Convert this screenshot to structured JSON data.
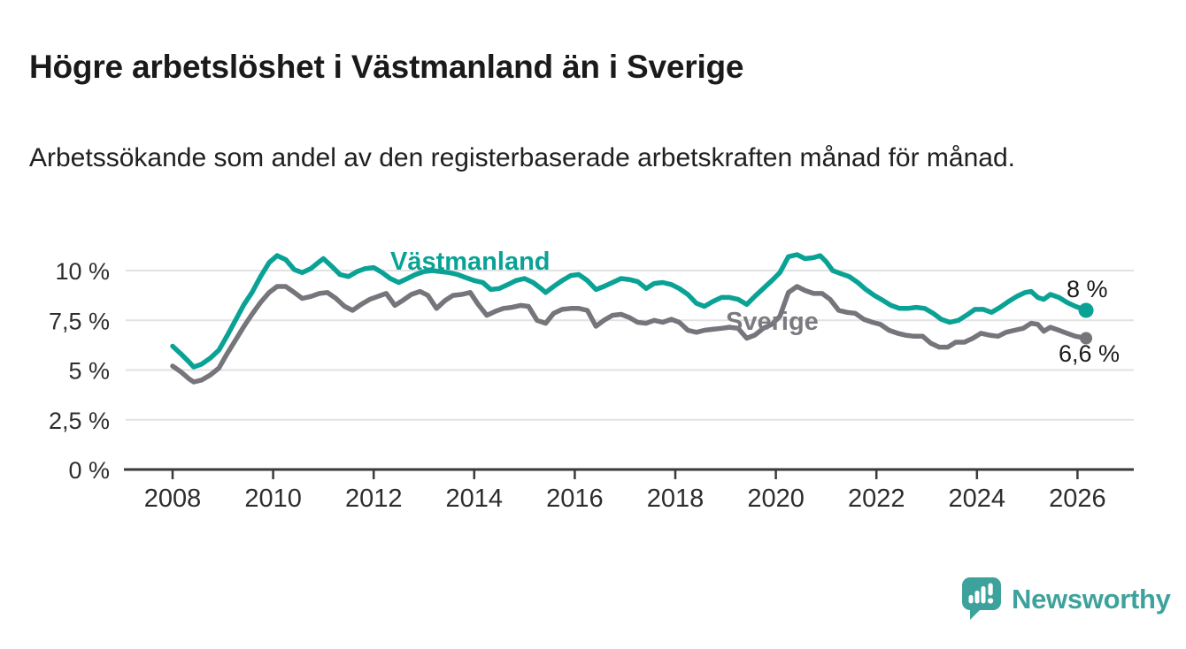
{
  "chart_data": {
    "type": "line",
    "title": "Högre arbetslöshet i Västmanland än i Sverige",
    "subtitle": "Arbetssökande som andel av den registerbaserade arbetskraften månad för månad.",
    "grid": "horizontal",
    "legend_position": "inline-labels",
    "x_axis": {
      "ticks": [
        2008,
        2010,
        2012,
        2014,
        2016,
        2018,
        2020,
        2022,
        2024,
        2026
      ],
      "range": [
        2007.0,
        2027.1
      ]
    },
    "y_axis": {
      "unit": "%",
      "tick_values": [
        0,
        2.5,
        5,
        7.5,
        10
      ],
      "tick_labels": [
        "0 %",
        "2,5 %",
        "5 %",
        "7,5 %",
        "10 %"
      ],
      "range": [
        0,
        11.6
      ]
    },
    "series": [
      {
        "id": "vastmanland",
        "name": "Västmanland",
        "color": "#0ba296",
        "end_label": "8 %",
        "end_value": 8.0,
        "end_marker_radius": 8.5,
        "points": [
          [
            2008.0,
            6.2
          ],
          [
            2008.17,
            5.8
          ],
          [
            2008.33,
            5.4
          ],
          [
            2008.42,
            5.15
          ],
          [
            2008.58,
            5.3
          ],
          [
            2008.75,
            5.6
          ],
          [
            2008.92,
            6.0
          ],
          [
            2009.08,
            6.7
          ],
          [
            2009.25,
            7.5
          ],
          [
            2009.42,
            8.3
          ],
          [
            2009.58,
            8.9
          ],
          [
            2009.75,
            9.7
          ],
          [
            2009.92,
            10.4
          ],
          [
            2010.08,
            10.75
          ],
          [
            2010.25,
            10.55
          ],
          [
            2010.42,
            10.05
          ],
          [
            2010.58,
            9.9
          ],
          [
            2010.75,
            10.1
          ],
          [
            2010.92,
            10.45
          ],
          [
            2011.0,
            10.6
          ],
          [
            2011.17,
            10.2
          ],
          [
            2011.33,
            9.8
          ],
          [
            2011.5,
            9.7
          ],
          [
            2011.67,
            9.95
          ],
          [
            2011.83,
            10.1
          ],
          [
            2012.0,
            10.15
          ],
          [
            2012.17,
            9.9
          ],
          [
            2012.33,
            9.6
          ],
          [
            2012.5,
            9.4
          ],
          [
            2012.67,
            9.6
          ],
          [
            2012.83,
            9.8
          ],
          [
            2013.0,
            9.95
          ],
          [
            2013.17,
            10.0
          ],
          [
            2013.33,
            9.95
          ],
          [
            2013.5,
            9.9
          ],
          [
            2013.67,
            9.8
          ],
          [
            2013.83,
            9.65
          ],
          [
            2014.0,
            9.5
          ],
          [
            2014.17,
            9.4
          ],
          [
            2014.33,
            9.05
          ],
          [
            2014.5,
            9.1
          ],
          [
            2014.67,
            9.3
          ],
          [
            2014.83,
            9.5
          ],
          [
            2015.0,
            9.6
          ],
          [
            2015.17,
            9.4
          ],
          [
            2015.33,
            9.1
          ],
          [
            2015.42,
            8.9
          ],
          [
            2015.58,
            9.2
          ],
          [
            2015.75,
            9.5
          ],
          [
            2015.92,
            9.75
          ],
          [
            2016.08,
            9.8
          ],
          [
            2016.25,
            9.5
          ],
          [
            2016.42,
            9.05
          ],
          [
            2016.58,
            9.2
          ],
          [
            2016.75,
            9.4
          ],
          [
            2016.92,
            9.6
          ],
          [
            2017.08,
            9.55
          ],
          [
            2017.25,
            9.45
          ],
          [
            2017.42,
            9.1
          ],
          [
            2017.58,
            9.35
          ],
          [
            2017.75,
            9.4
          ],
          [
            2017.92,
            9.3
          ],
          [
            2018.08,
            9.1
          ],
          [
            2018.25,
            8.8
          ],
          [
            2018.42,
            8.35
          ],
          [
            2018.58,
            8.2
          ],
          [
            2018.75,
            8.45
          ],
          [
            2018.92,
            8.65
          ],
          [
            2019.08,
            8.65
          ],
          [
            2019.25,
            8.55
          ],
          [
            2019.42,
            8.3
          ],
          [
            2019.58,
            8.7
          ],
          [
            2019.75,
            9.1
          ],
          [
            2019.92,
            9.5
          ],
          [
            2020.08,
            9.9
          ],
          [
            2020.25,
            10.7
          ],
          [
            2020.42,
            10.8
          ],
          [
            2020.58,
            10.6
          ],
          [
            2020.75,
            10.65
          ],
          [
            2020.88,
            10.75
          ],
          [
            2021.0,
            10.45
          ],
          [
            2021.13,
            10.0
          ],
          [
            2021.29,
            9.85
          ],
          [
            2021.46,
            9.7
          ],
          [
            2021.63,
            9.4
          ],
          [
            2021.79,
            9.05
          ],
          [
            2021.96,
            8.75
          ],
          [
            2022.13,
            8.5
          ],
          [
            2022.29,
            8.25
          ],
          [
            2022.46,
            8.1
          ],
          [
            2022.63,
            8.1
          ],
          [
            2022.79,
            8.15
          ],
          [
            2022.96,
            8.1
          ],
          [
            2023.13,
            7.85
          ],
          [
            2023.29,
            7.55
          ],
          [
            2023.46,
            7.4
          ],
          [
            2023.63,
            7.5
          ],
          [
            2023.79,
            7.75
          ],
          [
            2023.96,
            8.05
          ],
          [
            2024.13,
            8.05
          ],
          [
            2024.29,
            7.9
          ],
          [
            2024.46,
            8.15
          ],
          [
            2024.63,
            8.45
          ],
          [
            2024.79,
            8.7
          ],
          [
            2024.96,
            8.9
          ],
          [
            2025.08,
            8.95
          ],
          [
            2025.21,
            8.65
          ],
          [
            2025.33,
            8.55
          ],
          [
            2025.46,
            8.8
          ],
          [
            2025.63,
            8.65
          ],
          [
            2025.79,
            8.4
          ],
          [
            2025.96,
            8.2
          ],
          [
            2026.17,
            8.0
          ]
        ]
      },
      {
        "id": "sverige",
        "name": "Sverige",
        "color": "#76757b",
        "end_label": "6,6 %",
        "end_value": 6.6,
        "end_marker_radius": 7,
        "points": [
          [
            2008.0,
            5.2
          ],
          [
            2008.17,
            4.9
          ],
          [
            2008.33,
            4.55
          ],
          [
            2008.42,
            4.4
          ],
          [
            2008.58,
            4.5
          ],
          [
            2008.75,
            4.75
          ],
          [
            2008.92,
            5.1
          ],
          [
            2009.08,
            5.8
          ],
          [
            2009.25,
            6.5
          ],
          [
            2009.42,
            7.2
          ],
          [
            2009.58,
            7.8
          ],
          [
            2009.75,
            8.4
          ],
          [
            2009.92,
            8.9
          ],
          [
            2010.08,
            9.2
          ],
          [
            2010.25,
            9.2
          ],
          [
            2010.42,
            8.9
          ],
          [
            2010.58,
            8.6
          ],
          [
            2010.75,
            8.7
          ],
          [
            2010.92,
            8.85
          ],
          [
            2011.08,
            8.9
          ],
          [
            2011.25,
            8.6
          ],
          [
            2011.42,
            8.2
          ],
          [
            2011.58,
            8.0
          ],
          [
            2011.75,
            8.3
          ],
          [
            2011.92,
            8.55
          ],
          [
            2012.08,
            8.7
          ],
          [
            2012.25,
            8.85
          ],
          [
            2012.42,
            8.25
          ],
          [
            2012.58,
            8.5
          ],
          [
            2012.75,
            8.8
          ],
          [
            2012.92,
            8.95
          ],
          [
            2013.08,
            8.75
          ],
          [
            2013.25,
            8.1
          ],
          [
            2013.42,
            8.5
          ],
          [
            2013.58,
            8.75
          ],
          [
            2013.75,
            8.8
          ],
          [
            2013.92,
            8.9
          ],
          [
            2014.08,
            8.3
          ],
          [
            2014.25,
            7.75
          ],
          [
            2014.42,
            7.95
          ],
          [
            2014.58,
            8.1
          ],
          [
            2014.75,
            8.15
          ],
          [
            2014.92,
            8.25
          ],
          [
            2015.08,
            8.2
          ],
          [
            2015.25,
            7.5
          ],
          [
            2015.42,
            7.35
          ],
          [
            2015.58,
            7.85
          ],
          [
            2015.75,
            8.05
          ],
          [
            2015.92,
            8.1
          ],
          [
            2016.08,
            8.1
          ],
          [
            2016.25,
            8.0
          ],
          [
            2016.42,
            7.2
          ],
          [
            2016.58,
            7.5
          ],
          [
            2016.75,
            7.75
          ],
          [
            2016.92,
            7.8
          ],
          [
            2017.08,
            7.65
          ],
          [
            2017.25,
            7.4
          ],
          [
            2017.42,
            7.35
          ],
          [
            2017.58,
            7.5
          ],
          [
            2017.75,
            7.4
          ],
          [
            2017.92,
            7.55
          ],
          [
            2018.08,
            7.4
          ],
          [
            2018.25,
            7.0
          ],
          [
            2018.42,
            6.9
          ],
          [
            2018.58,
            7.0
          ],
          [
            2018.75,
            7.05
          ],
          [
            2018.92,
            7.1
          ],
          [
            2019.08,
            7.15
          ],
          [
            2019.25,
            7.1
          ],
          [
            2019.42,
            6.6
          ],
          [
            2019.58,
            6.75
          ],
          [
            2019.75,
            7.1
          ],
          [
            2019.92,
            7.3
          ],
          [
            2020.08,
            7.7
          ],
          [
            2020.25,
            8.9
          ],
          [
            2020.42,
            9.2
          ],
          [
            2020.58,
            9.0
          ],
          [
            2020.75,
            8.85
          ],
          [
            2020.92,
            8.85
          ],
          [
            2021.08,
            8.55
          ],
          [
            2021.25,
            8.0
          ],
          [
            2021.42,
            7.9
          ],
          [
            2021.58,
            7.85
          ],
          [
            2021.75,
            7.55
          ],
          [
            2021.92,
            7.4
          ],
          [
            2022.08,
            7.3
          ],
          [
            2022.25,
            7.0
          ],
          [
            2022.42,
            6.85
          ],
          [
            2022.58,
            6.75
          ],
          [
            2022.75,
            6.7
          ],
          [
            2022.92,
            6.7
          ],
          [
            2023.08,
            6.35
          ],
          [
            2023.25,
            6.15
          ],
          [
            2023.42,
            6.15
          ],
          [
            2023.58,
            6.4
          ],
          [
            2023.75,
            6.4
          ],
          [
            2023.92,
            6.6
          ],
          [
            2024.08,
            6.85
          ],
          [
            2024.25,
            6.75
          ],
          [
            2024.42,
            6.7
          ],
          [
            2024.58,
            6.9
          ],
          [
            2024.75,
            7.0
          ],
          [
            2024.92,
            7.1
          ],
          [
            2025.08,
            7.35
          ],
          [
            2025.21,
            7.3
          ],
          [
            2025.33,
            6.95
          ],
          [
            2025.46,
            7.15
          ],
          [
            2025.63,
            7.0
          ],
          [
            2025.79,
            6.85
          ],
          [
            2025.96,
            6.7
          ],
          [
            2026.17,
            6.6
          ]
        ]
      }
    ],
    "style": {
      "gridline_color": "#e2e2e2",
      "axis_color": "#3a3a3a",
      "tick_label_color": "#2d2d2d"
    }
  },
  "footer": {
    "brand": "Newsworthy",
    "brand_color": "#3ea29c",
    "logo_icon": "bar-chart-speech-bubble-icon"
  }
}
